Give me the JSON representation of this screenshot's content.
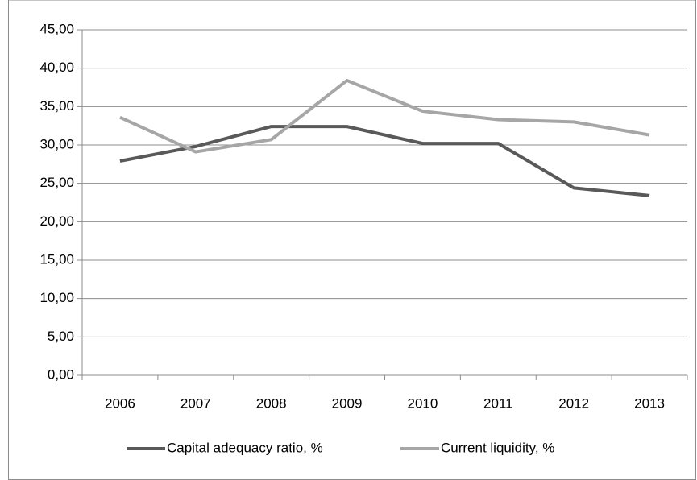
{
  "chart_data": {
    "type": "line",
    "categories": [
      "2006",
      "2007",
      "2008",
      "2009",
      "2010",
      "2011",
      "2012",
      "2013"
    ],
    "series": [
      {
        "name": "Capital adequacy ratio, %",
        "color": "#595959",
        "values": [
          27.9,
          29.8,
          32.4,
          32.4,
          30.2,
          30.2,
          24.4,
          23.4
        ]
      },
      {
        "name": "Current liquidity, %",
        "color": "#a6a6a6",
        "values": [
          33.6,
          29.1,
          30.7,
          38.4,
          34.4,
          33.3,
          33.0,
          31.3
        ]
      }
    ],
    "ylim": [
      0,
      45
    ],
    "yticks": [
      {
        "value": 0,
        "label": "0,00"
      },
      {
        "value": 5,
        "label": "5,00"
      },
      {
        "value": 10,
        "label": "10,00"
      },
      {
        "value": 15,
        "label": "15,00"
      },
      {
        "value": 20,
        "label": "20,00"
      },
      {
        "value": 25,
        "label": "25,00"
      },
      {
        "value": 30,
        "label": "30,00"
      },
      {
        "value": 35,
        "label": "35,00"
      },
      {
        "value": 40,
        "label": "40,00"
      },
      {
        "value": 45,
        "label": "45,00"
      }
    ],
    "grid": true,
    "legend": "bottom"
  }
}
